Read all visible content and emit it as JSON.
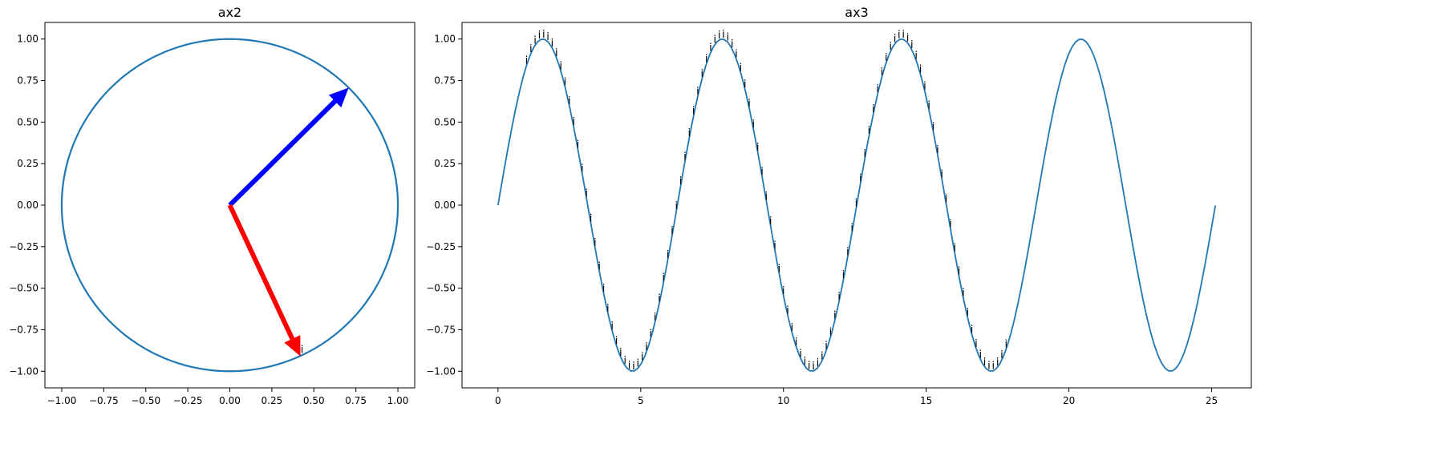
{
  "chart_data": [
    {
      "id": "ax2",
      "type": "line",
      "title": "ax2",
      "xlim": [
        -1.1,
        1.1
      ],
      "ylim": [
        -1.1,
        1.1
      ],
      "xticks": [
        -1.0,
        -0.75,
        -0.5,
        -0.25,
        0.0,
        0.25,
        0.5,
        0.75,
        1.0
      ],
      "xtick_labels": [
        "−1.00",
        "−0.75",
        "−0.50",
        "−0.25",
        "0.00",
        "0.25",
        "0.50",
        "0.75",
        "1.00"
      ],
      "yticks": [
        -1.0,
        -0.75,
        -0.5,
        -0.25,
        0.0,
        0.25,
        0.5,
        0.75,
        1.0
      ],
      "ytick_labels": [
        "−1.00",
        "−0.75",
        "−0.50",
        "−0.25",
        "0.00",
        "0.25",
        "0.50",
        "0.75",
        "1.00"
      ],
      "grid": false,
      "curve": {
        "kind": "unit-circle",
        "radius": 1.0,
        "color": "#1f77b4"
      },
      "arrows": [
        {
          "name": "blue-arrow",
          "from": [
            0,
            0
          ],
          "to": [
            0.707,
            0.707
          ],
          "color": "#0000ff"
        },
        {
          "name": "red-arrow",
          "from": [
            0,
            0
          ],
          "to": [
            0.42,
            -0.91
          ],
          "color": "#ff0000"
        }
      ],
      "markers": [
        {
          "x": 0.43,
          "y": -0.89,
          "text": "i"
        }
      ]
    },
    {
      "id": "ax3",
      "type": "line",
      "title": "ax3",
      "xlim": [
        -1.26,
        26.39
      ],
      "ylim": [
        -1.1,
        1.1
      ],
      "xticks": [
        0,
        5,
        10,
        15,
        20,
        25
      ],
      "xtick_labels": [
        "0",
        "5",
        "10",
        "15",
        "20",
        "25"
      ],
      "yticks": [
        -1.0,
        -0.75,
        -0.5,
        -0.25,
        0.0,
        0.25,
        0.5,
        0.75,
        1.0
      ],
      "ytick_labels": [
        "−1.00",
        "−0.75",
        "−0.50",
        "−0.25",
        "0.00",
        "0.25",
        "0.50",
        "0.75",
        "1.00"
      ],
      "grid": false,
      "series": [
        {
          "function": "sin",
          "x_start": 0,
          "x_end": 25.13,
          "color": "#1f77b4"
        }
      ],
      "marker_text": "i",
      "marker_x": [
        1.0,
        1.15,
        1.3,
        1.45,
        1.6,
        1.75,
        1.9,
        2.05,
        2.2,
        2.35,
        2.5,
        2.65,
        2.8,
        2.95,
        3.1,
        3.25,
        3.4,
        3.55,
        3.7,
        3.85,
        4.0,
        4.15,
        4.3,
        4.45,
        4.6,
        4.75,
        4.9,
        5.05,
        5.2,
        5.35,
        5.5,
        5.65,
        5.8,
        5.95,
        6.1,
        6.25,
        6.4,
        6.55,
        6.7,
        6.85,
        7.0,
        7.15,
        7.3,
        7.45,
        7.6,
        7.75,
        7.9,
        8.05,
        8.2,
        8.35,
        8.5,
        8.65,
        8.8,
        8.95,
        9.1,
        9.25,
        9.4,
        9.55,
        9.7,
        9.85,
        10.0,
        10.15,
        10.3,
        10.45,
        10.6,
        10.75,
        10.9,
        11.05,
        11.2,
        11.35,
        11.5,
        11.65,
        11.8,
        11.95,
        12.1,
        12.25,
        12.4,
        12.55,
        12.7,
        12.85,
        13.0,
        13.15,
        13.3,
        13.45,
        13.6,
        13.75,
        13.9,
        14.05,
        14.2,
        14.35,
        14.5,
        14.65,
        14.8,
        14.95,
        15.1,
        15.25,
        15.4,
        15.55,
        15.7,
        15.85,
        16.0,
        16.15,
        16.3,
        16.45,
        16.6,
        16.75,
        16.9,
        17.05,
        17.2,
        17.35,
        17.5,
        17.65,
        17.8
      ]
    }
  ]
}
